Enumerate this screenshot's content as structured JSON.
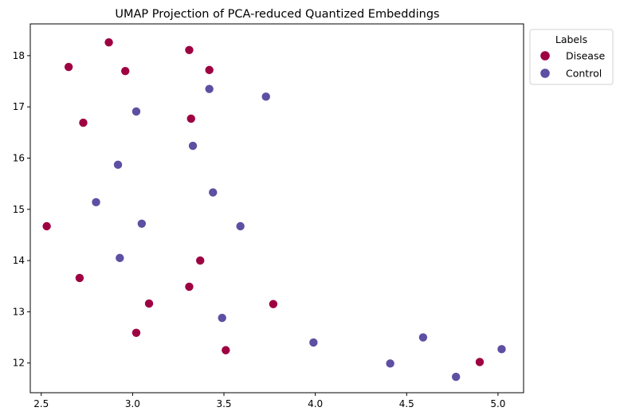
{
  "chart_data": {
    "type": "scatter",
    "title": "UMAP Projection of PCA-reduced Quantized Embeddings",
    "xlabel": "",
    "ylabel": "",
    "xlim": [
      2.44,
      5.14
    ],
    "ylim": [
      11.42,
      18.62
    ],
    "xticks": [
      2.5,
      3.0,
      3.5,
      4.0,
      4.5,
      5.0
    ],
    "xtick_labels": [
      "2.5",
      "3.0",
      "3.5",
      "4.0",
      "4.5",
      "5.0"
    ],
    "yticks": [
      12,
      13,
      14,
      15,
      16,
      17,
      18
    ],
    "ytick_labels": [
      "12",
      "13",
      "14",
      "15",
      "16",
      "17",
      "18"
    ],
    "grid": false,
    "legend": {
      "title": "Labels",
      "placement": "outside-top-right"
    },
    "series": [
      {
        "name": "Disease",
        "color": "#9e0142",
        "points": [
          {
            "x": 2.87,
            "y": 18.26
          },
          {
            "x": 3.31,
            "y": 18.11
          },
          {
            "x": 2.65,
            "y": 17.78
          },
          {
            "x": 2.96,
            "y": 17.7
          },
          {
            "x": 3.42,
            "y": 17.72
          },
          {
            "x": 2.73,
            "y": 16.69
          },
          {
            "x": 3.32,
            "y": 16.77
          },
          {
            "x": 2.53,
            "y": 14.67
          },
          {
            "x": 3.37,
            "y": 14.0
          },
          {
            "x": 2.71,
            "y": 13.66
          },
          {
            "x": 3.31,
            "y": 13.49
          },
          {
            "x": 3.09,
            "y": 13.16
          },
          {
            "x": 3.77,
            "y": 13.15
          },
          {
            "x": 3.02,
            "y": 12.59
          },
          {
            "x": 3.51,
            "y": 12.25
          },
          {
            "x": 4.9,
            "y": 12.02
          }
        ]
      },
      {
        "name": "Control",
        "color": "#5e4fa2",
        "points": [
          {
            "x": 3.42,
            "y": 17.35
          },
          {
            "x": 3.73,
            "y": 17.2
          },
          {
            "x": 3.02,
            "y": 16.91
          },
          {
            "x": 3.33,
            "y": 16.24
          },
          {
            "x": 2.92,
            "y": 15.87
          },
          {
            "x": 3.44,
            "y": 15.33
          },
          {
            "x": 2.8,
            "y": 15.14
          },
          {
            "x": 3.05,
            "y": 14.72
          },
          {
            "x": 3.59,
            "y": 14.67
          },
          {
            "x": 2.93,
            "y": 14.05
          },
          {
            "x": 3.49,
            "y": 12.88
          },
          {
            "x": 3.99,
            "y": 12.4
          },
          {
            "x": 4.59,
            "y": 12.5
          },
          {
            "x": 4.41,
            "y": 11.99
          },
          {
            "x": 4.77,
            "y": 11.73
          },
          {
            "x": 5.02,
            "y": 12.27
          }
        ]
      }
    ]
  }
}
